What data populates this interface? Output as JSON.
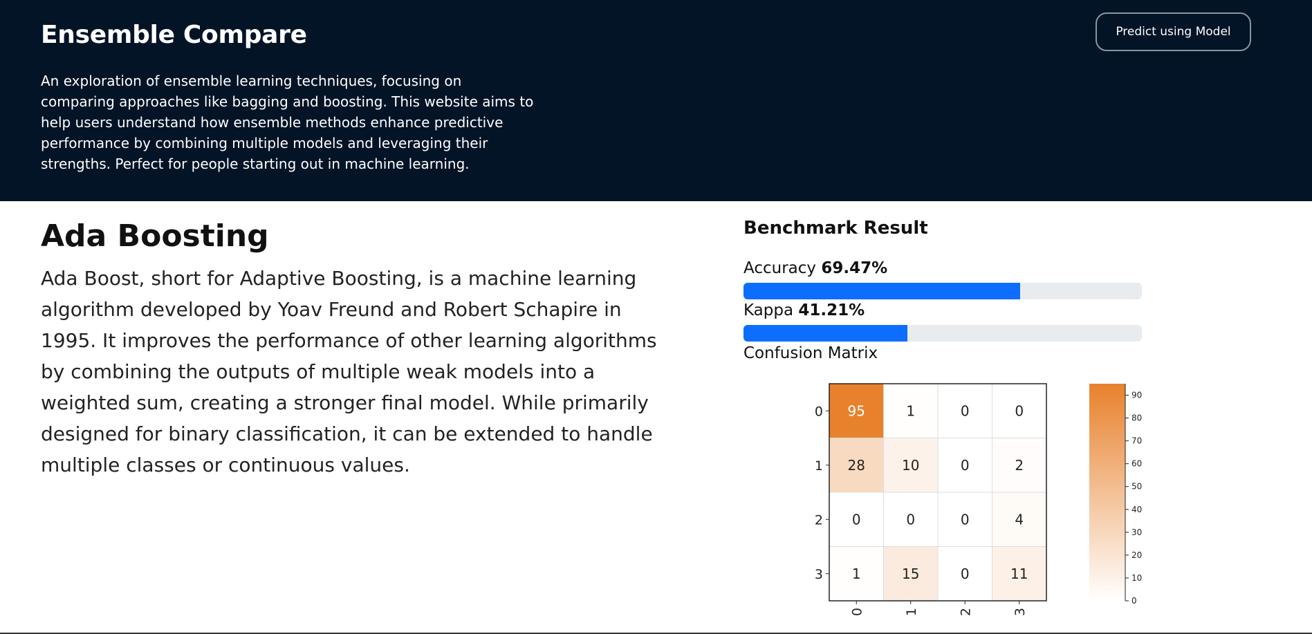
{
  "header": {
    "title": "Ensemble Compare",
    "description": "An exploration of ensemble learning techniques, focusing on comparing approaches like bagging and boosting. This website aims to help users understand how ensemble methods enhance predictive performance by combining multiple models and leveraging their strengths. Perfect for people starting out in machine learning.",
    "predict_button": "Predict using Model"
  },
  "algorithm": {
    "title": "Ada Boosting",
    "description": "Ada Boost, short for Adaptive Boosting, is a machine learning algorithm developed by Yoav Freund and Robert Schapire in 1995. It improves the performance of other learning algorithms by combining the outputs of multiple weak models into a weighted sum, creating a stronger final model. While primarily designed for binary classification, it can be extended to handle multiple classes or continuous values."
  },
  "benchmark": {
    "title": "Benchmark Result",
    "accuracy_label": "Accuracy",
    "accuracy_value": "69.47%",
    "accuracy_fraction": 0.6947,
    "kappa_label": "Kappa",
    "kappa_value": "41.21%",
    "kappa_fraction": 0.4121,
    "bar_color": "#0d6efd",
    "confusion_label": "Confusion Matrix"
  },
  "chart_data": {
    "type": "heatmap",
    "rows": [
      "0",
      "1",
      "2",
      "3"
    ],
    "cols": [
      "0",
      "1",
      "2",
      "3"
    ],
    "values": [
      [
        95,
        1,
        0,
        0
      ],
      [
        28,
        10,
        0,
        2
      ],
      [
        0,
        0,
        0,
        4
      ],
      [
        1,
        15,
        0,
        11
      ]
    ],
    "colorbar_ticks": [
      "0",
      "10",
      "20",
      "30",
      "40",
      "50",
      "60",
      "70",
      "80",
      "90"
    ],
    "colorbar_range": [
      0,
      95
    ],
    "color_low": "#ffffff",
    "color_high": "#e8812c"
  }
}
